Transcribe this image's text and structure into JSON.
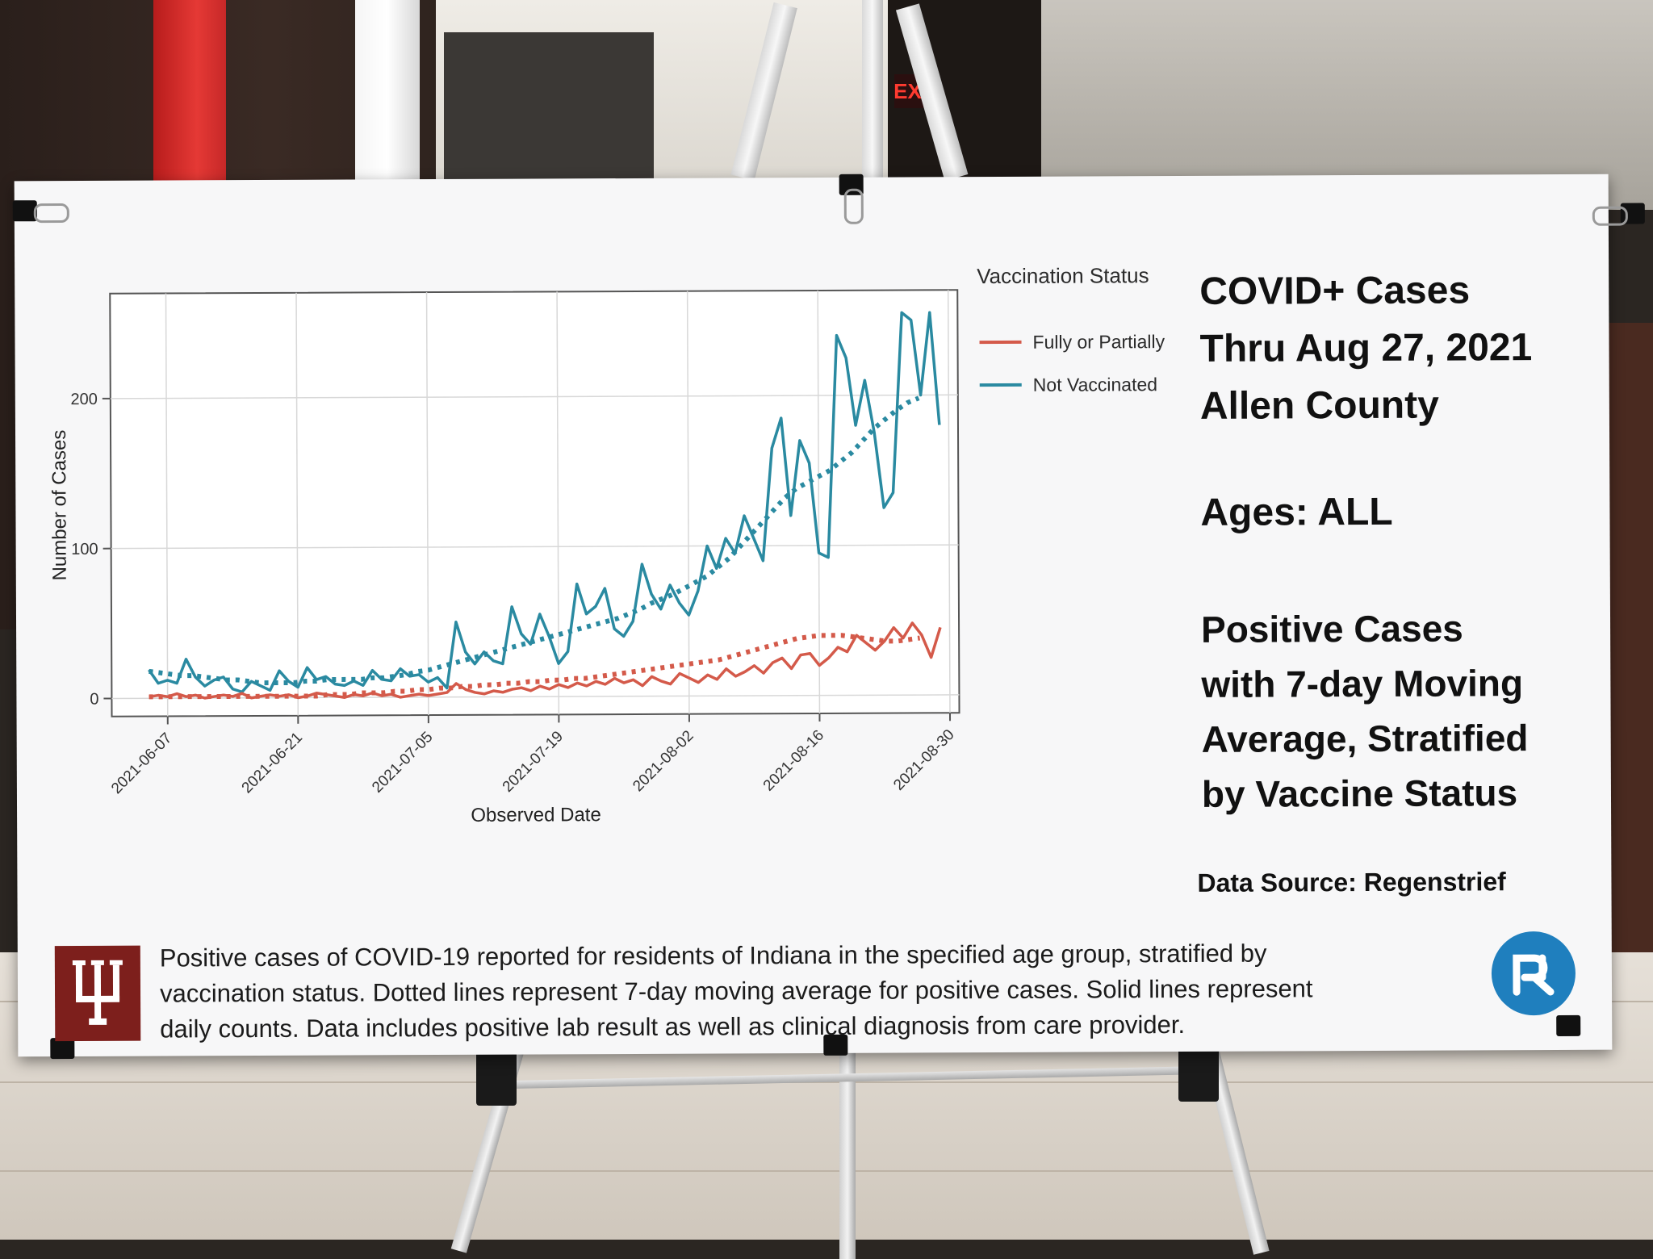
{
  "poster": {
    "legend_title": "Vaccination Status",
    "legend": [
      {
        "label": "Fully or Partially",
        "color": "#d45a4a"
      },
      {
        "label": "Not Vaccinated",
        "color": "#2a8aa1"
      }
    ],
    "title_lines": [
      "COVID+ Cases",
      "Thru Aug 27, 2021",
      "Allen County"
    ],
    "ages": "Ages: ALL",
    "positive_lines": [
      "Positive Cases",
      "with 7-day Moving",
      "Average, Stratified",
      "by Vaccine Status"
    ],
    "data_source": "Data Source: Regenstrief",
    "footer_lines": [
      "Positive cases of COVID-19 reported for residents of Indiana in the specified age group, stratified by",
      "vaccination status. Dotted lines represent 7-day moving average for positive cases. Solid lines represent",
      "daily counts. Data includes positive lab result as well as clinical diagnosis from care provider."
    ],
    "room_sign": "EXIT"
  },
  "chart_data": {
    "type": "line",
    "xlabel": "Observed Date",
    "ylabel": "Number of Cases",
    "x_start": "2021-06-05",
    "x_end": "2021-08-27",
    "xlim": [
      "2021-06-01",
      "2021-08-31"
    ],
    "ylim": [
      -12,
      270
    ],
    "yticks": [
      0,
      100,
      200
    ],
    "xticks": [
      "2021-06-07",
      "2021-06-21",
      "2021-07-05",
      "2021-07-19",
      "2021-08-02",
      "2021-08-16",
      "2021-08-30"
    ],
    "grid": true,
    "legend_placement": "right",
    "series": [
      {
        "name": "Not Vaccinated",
        "style": "solid",
        "color": "#2a8aa1",
        "values": [
          19,
          10,
          12,
          10,
          26,
          14,
          8,
          12,
          14,
          6,
          4,
          11,
          8,
          5,
          18,
          11,
          7,
          20,
          12,
          14,
          9,
          8,
          11,
          8,
          18,
          12,
          11,
          19,
          14,
          15,
          10,
          13,
          6,
          50,
          30,
          22,
          30,
          24,
          22,
          60,
          42,
          35,
          55,
          40,
          22,
          30,
          75,
          55,
          60,
          72,
          45,
          40,
          50,
          88,
          68,
          58,
          74,
          62,
          54,
          70,
          100,
          85,
          105,
          95,
          120,
          105,
          90,
          165,
          185,
          120,
          170,
          155,
          95,
          92,
          240,
          225,
          180,
          210,
          175,
          125,
          135,
          255,
          250,
          200,
          255,
          180
        ],
        "x_step_days": 1
      },
      {
        "name": "Not Vaccinated",
        "style": "dotted",
        "color": "#2a8aa1",
        "values": [
          18,
          17,
          16,
          15,
          15,
          14,
          13,
          12,
          12,
          11,
          10,
          10,
          10,
          10,
          11,
          11,
          12,
          12,
          12,
          12,
          13,
          13,
          14,
          15,
          17,
          18,
          20,
          22,
          24,
          26,
          28,
          30,
          32,
          34,
          36,
          38,
          40,
          42,
          44,
          46,
          48,
          50,
          52,
          55,
          58,
          62,
          65,
          68,
          72,
          76,
          80,
          86,
          92,
          100,
          108,
          116,
          124,
          132,
          138,
          142,
          146,
          150,
          156,
          162,
          170,
          178,
          184,
          190,
          195,
          198
        ],
        "x_start_offset_days": 0,
        "x_step_days": 1.2
      },
      {
        "name": "Fully or Partially",
        "style": "solid",
        "color": "#d45a4a",
        "values": [
          1,
          2,
          1,
          3,
          1,
          2,
          0,
          1,
          2,
          1,
          3,
          0,
          1,
          2,
          1,
          2,
          0,
          1,
          3,
          2,
          1,
          0,
          2,
          1,
          3,
          1,
          2,
          0,
          1,
          2,
          1,
          2,
          3,
          9,
          5,
          3,
          2,
          4,
          3,
          5,
          6,
          4,
          7,
          5,
          8,
          6,
          9,
          7,
          10,
          8,
          12,
          9,
          11,
          7,
          13,
          10,
          8,
          15,
          12,
          9,
          14,
          11,
          18,
          13,
          16,
          20,
          15,
          22,
          25,
          18,
          27,
          28,
          20,
          25,
          32,
          29,
          40,
          35,
          30,
          36,
          45,
          38,
          48,
          40,
          25,
          45
        ],
        "x_step_days": 1
      },
      {
        "name": "Fully or Partially",
        "style": "dotted",
        "color": "#d45a4a",
        "values": [
          1,
          1,
          1,
          1,
          1,
          1,
          1,
          1,
          1,
          1,
          1,
          1,
          1,
          1,
          1,
          1,
          2,
          2,
          2,
          3,
          3,
          3,
          4,
          4,
          5,
          5,
          6,
          6,
          7,
          7,
          8,
          8,
          9,
          9,
          10,
          10,
          11,
          11,
          12,
          12,
          13,
          14,
          15,
          16,
          17,
          18,
          19,
          20,
          21,
          22,
          23,
          24,
          26,
          28,
          30,
          32,
          34,
          36,
          38,
          39,
          40,
          40,
          40,
          39,
          38,
          37,
          36,
          36,
          37,
          38
        ],
        "x_start_offset_days": 0,
        "x_step_days": 1.2
      }
    ]
  }
}
